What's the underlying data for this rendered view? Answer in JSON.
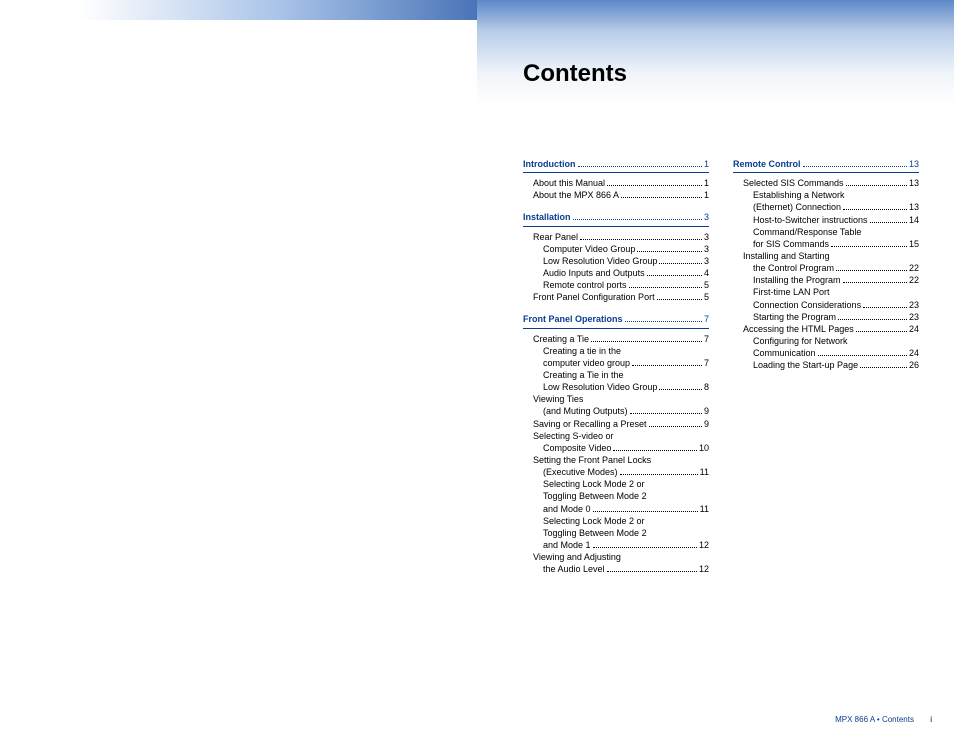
{
  "title": "Contents",
  "footer": {
    "text": "MPX 866 A • Contents",
    "pagenum": "i"
  },
  "colors": {
    "accent": "#0b3e8f",
    "grad_left_end": "#4a74b8",
    "grad_top": "#5d88c8"
  },
  "col1": [
    {
      "type": "sec",
      "label": "Introduction",
      "page": "1"
    },
    {
      "type": "row",
      "indent": 1,
      "label": "About this Manual",
      "page": "1"
    },
    {
      "type": "row",
      "indent": 1,
      "label": "About the MPX 866 A",
      "page": "1"
    },
    {
      "type": "sec",
      "label": "Installation",
      "page": "3"
    },
    {
      "type": "row",
      "indent": 1,
      "label": "Rear Panel",
      "page": "3"
    },
    {
      "type": "row",
      "indent": 2,
      "label": "Computer Video Group",
      "page": "3"
    },
    {
      "type": "row",
      "indent": 2,
      "label": "Low Resolution Video Group",
      "page": "3"
    },
    {
      "type": "row",
      "indent": 2,
      "label": "Audio Inputs and Outputs",
      "page": "4"
    },
    {
      "type": "row",
      "indent": 2,
      "label": "Remote control ports",
      "page": "5"
    },
    {
      "type": "row",
      "indent": 1,
      "label": "Front Panel Configuration Port",
      "page": "5"
    },
    {
      "type": "sec",
      "label": "Front Panel Operations",
      "page": "7"
    },
    {
      "type": "row",
      "indent": 1,
      "label": "Creating a Tie",
      "page": "7"
    },
    {
      "type": "cont",
      "indent": 2,
      "label": "Creating a tie in the"
    },
    {
      "type": "row",
      "indent": 2,
      "label": "computer video group",
      "page": "7"
    },
    {
      "type": "cont",
      "indent": 2,
      "label": "Creating a Tie in the"
    },
    {
      "type": "row",
      "indent": 2,
      "label": "Low Resolution Video Group",
      "page": "8"
    },
    {
      "type": "cont",
      "indent": 1,
      "label": "Viewing Ties"
    },
    {
      "type": "row",
      "indent": 2,
      "label": "(and Muting Outputs)",
      "page": "9"
    },
    {
      "type": "row",
      "indent": 1,
      "label": "Saving or Recalling a Preset",
      "page": "9"
    },
    {
      "type": "cont",
      "indent": 1,
      "label": "Selecting S-video or"
    },
    {
      "type": "row",
      "indent": 2,
      "label": "Composite Video",
      "page": "10"
    },
    {
      "type": "cont",
      "indent": 1,
      "label": "Setting the Front Panel Locks"
    },
    {
      "type": "row",
      "indent": 2,
      "label": "(Executive Modes)",
      "page": "11"
    },
    {
      "type": "cont",
      "indent": 2,
      "label": "Selecting Lock Mode 2 or"
    },
    {
      "type": "cont",
      "indent": 2,
      "label": "Toggling Between Mode 2"
    },
    {
      "type": "row",
      "indent": 2,
      "label": "and Mode 0",
      "page": "11"
    },
    {
      "type": "cont",
      "indent": 2,
      "label": "Selecting Lock Mode 2 or"
    },
    {
      "type": "cont",
      "indent": 2,
      "label": "Toggling Between Mode 2"
    },
    {
      "type": "row",
      "indent": 2,
      "label": "and Mode 1",
      "page": "12"
    },
    {
      "type": "cont",
      "indent": 1,
      "label": "Viewing and Adjusting"
    },
    {
      "type": "row",
      "indent": 2,
      "label": "the Audio Level",
      "page": "12"
    }
  ],
  "col2": [
    {
      "type": "sec",
      "label": "Remote Control",
      "page": "13"
    },
    {
      "type": "row",
      "indent": 1,
      "label": "Selected SIS Commands",
      "page": "13"
    },
    {
      "type": "cont",
      "indent": 2,
      "label": "Establishing a Network"
    },
    {
      "type": "row",
      "indent": 2,
      "label": "(Ethernet) Connection",
      "page": "13"
    },
    {
      "type": "row",
      "indent": 2,
      "label": "Host-to-Switcher instructions",
      "page": "14"
    },
    {
      "type": "cont",
      "indent": 2,
      "label": "Command/Response Table"
    },
    {
      "type": "row",
      "indent": 2,
      "label": "for SIS Commands",
      "page": "15"
    },
    {
      "type": "cont",
      "indent": 1,
      "label": "Installing and Starting"
    },
    {
      "type": "row",
      "indent": 2,
      "label": "the Control Program",
      "page": "22"
    },
    {
      "type": "row",
      "indent": 2,
      "label": "Installing the Program",
      "page": "22"
    },
    {
      "type": "cont",
      "indent": 2,
      "label": "First-time LAN Port"
    },
    {
      "type": "row",
      "indent": 2,
      "label": "Connection Considerations",
      "page": "23"
    },
    {
      "type": "row",
      "indent": 2,
      "label": "Starting the Program",
      "page": "23"
    },
    {
      "type": "row",
      "indent": 1,
      "label": "Accessing the HTML Pages",
      "page": "24"
    },
    {
      "type": "cont",
      "indent": 2,
      "label": "Configuring for Network"
    },
    {
      "type": "row",
      "indent": 2,
      "label": "Communication",
      "page": "24"
    },
    {
      "type": "row",
      "indent": 2,
      "label": "Loading the Start-up Page",
      "page": "26"
    }
  ]
}
